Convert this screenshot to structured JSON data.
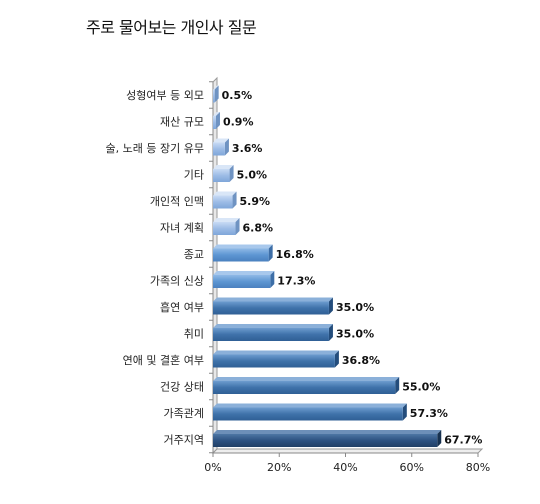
{
  "chart_data": {
    "type": "bar",
    "orientation": "horizontal",
    "title": "주로 물어보는 개인사 질문",
    "categories": [
      "성형여부 등 외모",
      "재산 규모",
      "술, 노래 등 장기 유무",
      "기타",
      "개인적 인맥",
      "자녀 계획",
      "종교",
      "가족의 신상",
      "흡연 여부",
      "취미",
      "연애 및 결혼 여부",
      "건강 상태",
      "가족관계",
      "거주지역"
    ],
    "values": [
      0.5,
      0.9,
      3.6,
      5.0,
      5.9,
      6.8,
      16.8,
      17.3,
      35.0,
      35.0,
      36.8,
      55.0,
      57.3,
      67.7
    ],
    "value_labels": [
      "0.5%",
      "0.9%",
      "3.6%",
      "5.0%",
      "5.9%",
      "6.8%",
      "16.8%",
      "17.3%",
      "35.0%",
      "35.0%",
      "36.8%",
      "55.0%",
      "57.3%",
      "67.7%"
    ],
    "xlim": [
      0,
      80
    ],
    "x_ticks": [
      0,
      20,
      40,
      60,
      80
    ],
    "x_tick_labels": [
      "0%",
      "20%",
      "40%",
      "60%",
      "80%"
    ],
    "grid": false,
    "colors": {
      "light": "#a9c4ea",
      "mid": "#6b9fd4",
      "dark": "#3e6fa3",
      "darkest": "#2b4d74",
      "axis": "#999999"
    }
  }
}
